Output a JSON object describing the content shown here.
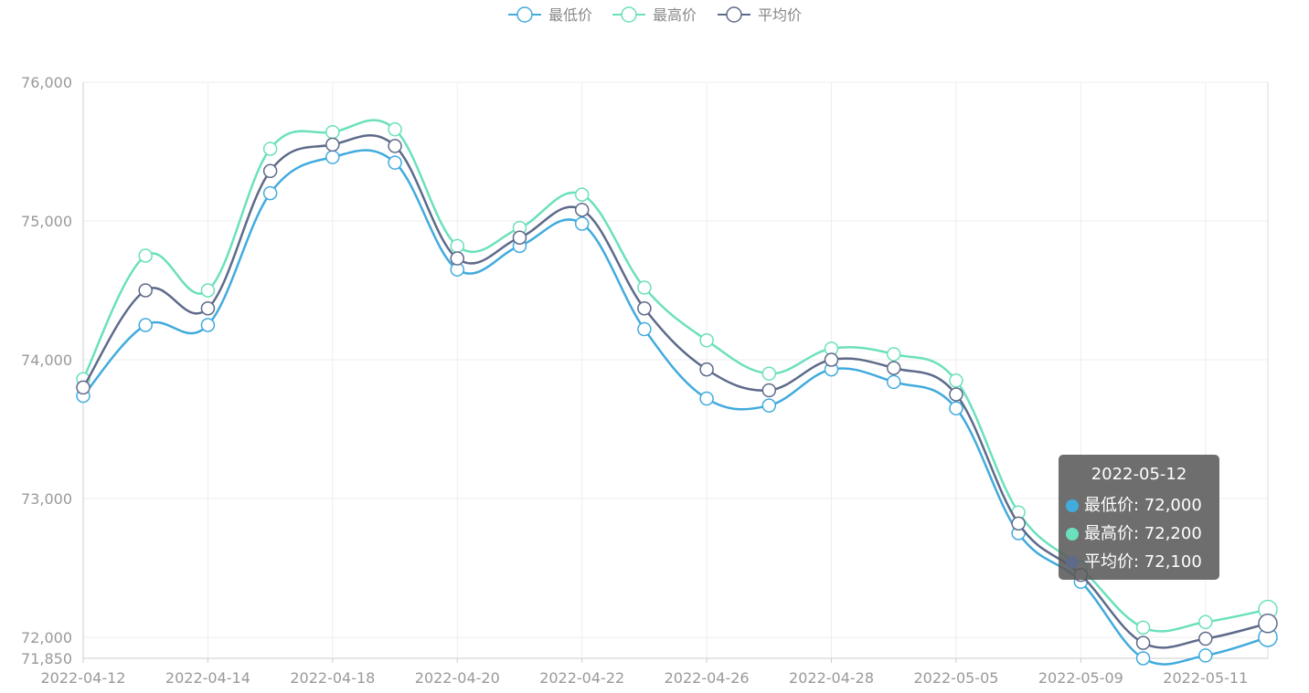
{
  "chart_data": {
    "type": "line",
    "smooth": true,
    "legend": {
      "position": "top-center"
    },
    "series": [
      {
        "name": "最低价",
        "color": "#41ABDD",
        "values": [
          73740,
          74250,
          74250,
          75200,
          75460,
          75420,
          74650,
          74820,
          74980,
          74220,
          73720,
          73670,
          73930,
          73840,
          73650,
          72750,
          72400,
          71850,
          71870,
          72000
        ]
      },
      {
        "name": "最高价",
        "color": "#6BE0BC",
        "values": [
          73860,
          74750,
          74500,
          75520,
          75640,
          75660,
          74820,
          74950,
          75190,
          74520,
          74140,
          73900,
          74080,
          74040,
          73850,
          72900,
          72500,
          72070,
          72110,
          72200
        ]
      },
      {
        "name": "平均价",
        "color": "#5E6A8A",
        "values": [
          73800,
          74500,
          74370,
          75360,
          75550,
          75540,
          74730,
          74880,
          75080,
          74370,
          73930,
          73780,
          74000,
          73940,
          73750,
          72820,
          72450,
          71960,
          71990,
          72100
        ]
      }
    ],
    "x_tick_labels": [
      "2022-04-12",
      "2022-04-14",
      "2022-04-18",
      "2022-04-20",
      "2022-04-22",
      "2022-04-26",
      "2022-04-28",
      "2022-05-05",
      "2022-05-09",
      "2022-05-11"
    ],
    "point_count": 20,
    "y_ticks": [
      "76,000",
      "75,000",
      "74,000",
      "73,000",
      "72,000",
      "71,850"
    ],
    "y_tick_values": [
      76000,
      75000,
      74000,
      73000,
      72000,
      71850
    ],
    "ylim": [
      71850,
      76000
    ],
    "grid": true
  },
  "tooltip": {
    "title": "2022-05-12",
    "rows": [
      {
        "label": "最低价: 72,000",
        "color": "#41ABDD"
      },
      {
        "label": "最高价: 72,200",
        "color": "#6BE0BC"
      },
      {
        "label": "平均价: 72,100",
        "color": "#5E6A8A"
      }
    ]
  }
}
